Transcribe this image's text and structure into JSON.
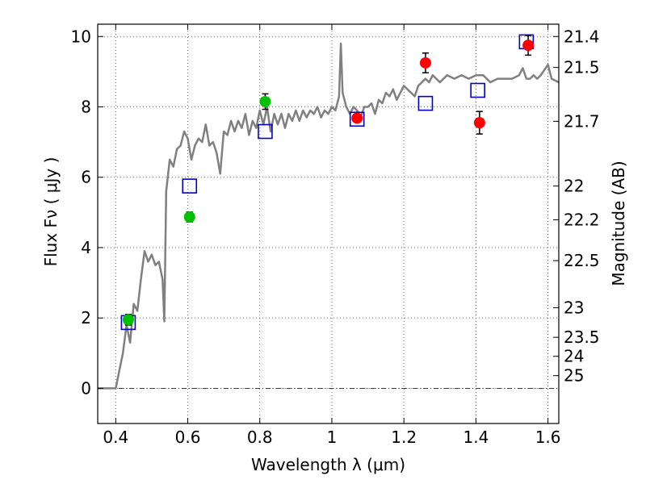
{
  "chart_data": {
    "type": "scatter",
    "xlabel": "Wavelength  λ (μm)",
    "ylabel": "Flux  Fν  ( μJy )",
    "ylabel_right": "Magnitude (AB)",
    "xlim": [
      0.35,
      1.63
    ],
    "ylim": [
      -1.0,
      10.35
    ],
    "x_ticks": [
      0.4,
      0.6,
      0.8,
      1.0,
      1.2,
      1.4,
      1.6
    ],
    "x_tick_labels": [
      "0.4",
      "0.6",
      "0.8",
      "1",
      "1.2",
      "1.4",
      "1.6"
    ],
    "y_ticks": [
      0,
      2,
      4,
      6,
      8,
      10
    ],
    "y_tick_labels": [
      "0",
      "2",
      "4",
      "6",
      "8",
      "10"
    ],
    "right_ticks": [
      {
        "label": "21.4",
        "flux": 10.0
      },
      {
        "label": "21.5",
        "flux": 9.12
      },
      {
        "label": "21.7",
        "flux": 7.59
      },
      {
        "label": "22",
        "flux": 5.75
      },
      {
        "label": "22.2",
        "flux": 4.79
      },
      {
        "label": "22.5",
        "flux": 3.63
      },
      {
        "label": "23",
        "flux": 2.29
      },
      {
        "label": "23.5",
        "flux": 1.45
      },
      {
        "label": "24",
        "flux": 0.91
      },
      {
        "label": "25",
        "flux": 0.36
      }
    ],
    "grid": true,
    "colors": {
      "model": "#808080",
      "green": "#00c000",
      "red": "#ff0000",
      "blue": "#0000cc",
      "errorbar": "#000000"
    },
    "series": [
      {
        "kind": "line",
        "points": [
          [
            0.35,
            0.0
          ],
          [
            0.4,
            0.0
          ],
          [
            0.42,
            1.0
          ],
          [
            0.43,
            1.8
          ],
          [
            0.44,
            1.3
          ],
          [
            0.45,
            2.4
          ],
          [
            0.46,
            2.2
          ],
          [
            0.47,
            3.1
          ],
          [
            0.48,
            3.9
          ],
          [
            0.49,
            3.6
          ],
          [
            0.5,
            3.8
          ],
          [
            0.51,
            3.5
          ],
          [
            0.52,
            3.6
          ],
          [
            0.53,
            3.1
          ],
          [
            0.535,
            1.9
          ],
          [
            0.54,
            5.6
          ],
          [
            0.55,
            6.5
          ],
          [
            0.56,
            6.3
          ],
          [
            0.57,
            6.8
          ],
          [
            0.58,
            6.9
          ],
          [
            0.59,
            7.3
          ],
          [
            0.6,
            7.1
          ],
          [
            0.61,
            6.5
          ],
          [
            0.62,
            6.9
          ],
          [
            0.63,
            7.1
          ],
          [
            0.64,
            7.0
          ],
          [
            0.65,
            7.5
          ],
          [
            0.66,
            6.9
          ],
          [
            0.67,
            7.0
          ],
          [
            0.68,
            6.7
          ],
          [
            0.69,
            6.1
          ],
          [
            0.7,
            7.3
          ],
          [
            0.71,
            7.2
          ],
          [
            0.72,
            7.6
          ],
          [
            0.73,
            7.3
          ],
          [
            0.74,
            7.6
          ],
          [
            0.75,
            7.4
          ],
          [
            0.76,
            7.8
          ],
          [
            0.77,
            7.2
          ],
          [
            0.78,
            7.6
          ],
          [
            0.79,
            7.4
          ],
          [
            0.8,
            7.9
          ],
          [
            0.81,
            7.5
          ],
          [
            0.82,
            8.0
          ],
          [
            0.83,
            7.3
          ],
          [
            0.84,
            7.8
          ],
          [
            0.85,
            7.5
          ],
          [
            0.86,
            7.8
          ],
          [
            0.87,
            7.4
          ],
          [
            0.88,
            7.8
          ],
          [
            0.89,
            7.6
          ],
          [
            0.9,
            7.9
          ],
          [
            0.91,
            7.6
          ],
          [
            0.92,
            7.9
          ],
          [
            0.93,
            7.7
          ],
          [
            0.94,
            7.9
          ],
          [
            0.95,
            7.8
          ],
          [
            0.96,
            8.0
          ],
          [
            0.97,
            7.7
          ],
          [
            0.98,
            7.9
          ],
          [
            0.99,
            7.8
          ],
          [
            1.0,
            8.0
          ],
          [
            1.01,
            7.9
          ],
          [
            1.02,
            8.3
          ],
          [
            1.025,
            9.8
          ],
          [
            1.03,
            8.4
          ],
          [
            1.04,
            8.0
          ],
          [
            1.05,
            7.8
          ],
          [
            1.06,
            8.0
          ],
          [
            1.07,
            7.9
          ],
          [
            1.08,
            7.7
          ],
          [
            1.09,
            8.0
          ],
          [
            1.1,
            8.0
          ],
          [
            1.11,
            8.1
          ],
          [
            1.12,
            7.8
          ],
          [
            1.13,
            8.2
          ],
          [
            1.14,
            8.1
          ],
          [
            1.15,
            8.4
          ],
          [
            1.16,
            8.3
          ],
          [
            1.17,
            8.5
          ],
          [
            1.18,
            8.2
          ],
          [
            1.19,
            8.4
          ],
          [
            1.2,
            8.6
          ],
          [
            1.21,
            8.5
          ],
          [
            1.22,
            8.4
          ],
          [
            1.23,
            8.3
          ],
          [
            1.24,
            8.6
          ],
          [
            1.25,
            8.7
          ],
          [
            1.26,
            8.8
          ],
          [
            1.27,
            8.7
          ],
          [
            1.28,
            8.9
          ],
          [
            1.29,
            8.8
          ],
          [
            1.3,
            8.7
          ],
          [
            1.32,
            8.9
          ],
          [
            1.34,
            8.8
          ],
          [
            1.36,
            8.9
          ],
          [
            1.38,
            8.8
          ],
          [
            1.4,
            8.9
          ],
          [
            1.42,
            8.9
          ],
          [
            1.44,
            8.7
          ],
          [
            1.46,
            8.8
          ],
          [
            1.48,
            8.8
          ],
          [
            1.5,
            8.8
          ],
          [
            1.52,
            8.9
          ],
          [
            1.53,
            9.1
          ],
          [
            1.54,
            8.8
          ],
          [
            1.55,
            8.8
          ],
          [
            1.56,
            8.9
          ],
          [
            1.57,
            8.8
          ],
          [
            1.58,
            8.9
          ],
          [
            1.6,
            9.2
          ],
          [
            1.61,
            8.8
          ],
          [
            1.63,
            8.7
          ]
        ]
      },
      {
        "kind": "points-green",
        "points": [
          [
            0.435,
            1.95,
            0.15
          ],
          [
            0.605,
            4.87,
            0.14
          ],
          [
            0.815,
            8.15,
            0.22
          ]
        ]
      },
      {
        "kind": "points-red",
        "points": [
          [
            1.07,
            7.68,
            0.0
          ],
          [
            1.26,
            9.25,
            0.28
          ],
          [
            1.41,
            7.55,
            0.32
          ],
          [
            1.545,
            9.75,
            0.28
          ]
        ]
      },
      {
        "kind": "squares-blue",
        "points": [
          [
            0.435,
            1.87
          ],
          [
            0.605,
            5.75
          ],
          [
            0.815,
            7.3
          ],
          [
            1.07,
            7.65
          ],
          [
            1.26,
            8.1
          ],
          [
            1.405,
            8.47
          ],
          [
            1.54,
            9.85
          ]
        ]
      }
    ]
  }
}
